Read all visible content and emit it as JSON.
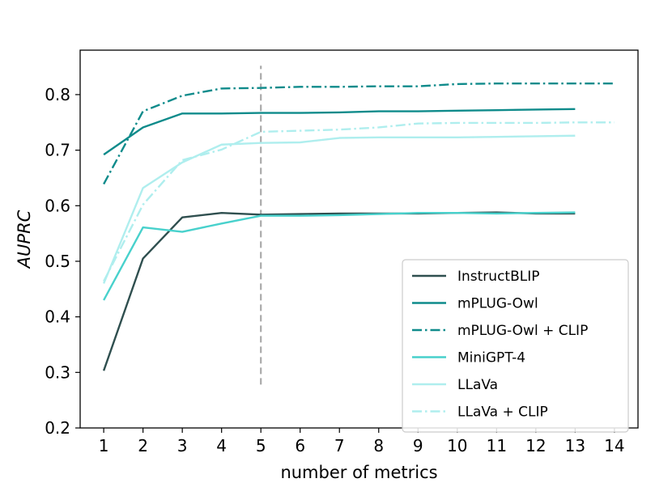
{
  "chart_data": {
    "type": "line",
    "title": "",
    "xlabel": "number of metrics",
    "ylabel": "AUPRC",
    "xlim": [
      0.4,
      14.6
    ],
    "ylim": [
      0.2,
      0.88
    ],
    "x_ticks": [
      1,
      2,
      3,
      4,
      5,
      6,
      7,
      8,
      9,
      10,
      11,
      12,
      13,
      14
    ],
    "y_ticks": [
      0.2,
      0.3,
      0.4,
      0.5,
      0.6,
      0.7,
      0.8
    ],
    "y_tick_labels": [
      "0.2",
      "0.3",
      "0.4",
      "0.5",
      "0.6",
      "0.7",
      "0.8"
    ],
    "grid": false,
    "legend_position": "lower-right",
    "reference_line": {
      "x": 5,
      "y_range": [
        0.278,
        0.852
      ],
      "style": "dashed",
      "color": "#aaaaaa"
    },
    "series": [
      {
        "name": "InstructBLIP",
        "color": "#2f4f4f",
        "dash": "solid",
        "x": [
          1,
          2,
          3,
          4,
          5,
          6,
          7,
          8,
          9,
          10,
          11,
          12,
          13
        ],
        "values": [
          0.303,
          0.505,
          0.579,
          0.587,
          0.584,
          0.585,
          0.586,
          0.586,
          0.586,
          0.587,
          0.588,
          0.586,
          0.586
        ]
      },
      {
        "name": "mPLUG-Owl",
        "color": "#0f8b8b",
        "dash": "solid",
        "x": [
          1,
          2,
          3,
          4,
          5,
          6,
          7,
          8,
          9,
          10,
          11,
          12,
          13
        ],
        "values": [
          0.692,
          0.741,
          0.766,
          0.766,
          0.767,
          0.767,
          0.768,
          0.77,
          0.77,
          0.771,
          0.772,
          0.773,
          0.774
        ]
      },
      {
        "name": "mPLUG-Owl + CLIP",
        "color": "#0f8b8b",
        "dash": "dashdot",
        "x": [
          1,
          2,
          3,
          4,
          5,
          6,
          7,
          8,
          9,
          10,
          11,
          12,
          13,
          14
        ],
        "values": [
          0.639,
          0.77,
          0.798,
          0.811,
          0.812,
          0.814,
          0.814,
          0.815,
          0.815,
          0.819,
          0.82,
          0.82,
          0.82,
          0.82
        ]
      },
      {
        "name": "MiniGPT-4",
        "color": "#48d1cc",
        "dash": "solid",
        "x": [
          1,
          2,
          3,
          4,
          5,
          6,
          7,
          8,
          9,
          10,
          11,
          12,
          13
        ],
        "values": [
          0.43,
          0.561,
          0.553,
          0.568,
          0.582,
          0.582,
          0.583,
          0.585,
          0.587,
          0.587,
          0.586,
          0.587,
          0.588
        ]
      },
      {
        "name": "LLaVa",
        "color": "#afeeee",
        "dash": "solid",
        "x": [
          1,
          2,
          3,
          4,
          5,
          6,
          7,
          8,
          9,
          10,
          11,
          12,
          13
        ],
        "values": [
          0.46,
          0.632,
          0.678,
          0.71,
          0.713,
          0.714,
          0.722,
          0.723,
          0.723,
          0.723,
          0.724,
          0.725,
          0.726
        ]
      },
      {
        "name": "LLaVa + CLIP",
        "color": "#afeeee",
        "dash": "dashdot",
        "x": [
          1,
          2,
          3,
          4,
          5,
          6,
          7,
          8,
          9,
          10,
          11,
          12,
          13,
          14
        ],
        "values": [
          0.464,
          0.602,
          0.682,
          0.701,
          0.733,
          0.735,
          0.737,
          0.741,
          0.748,
          0.749,
          0.749,
          0.749,
          0.75,
          0.75
        ]
      }
    ]
  }
}
